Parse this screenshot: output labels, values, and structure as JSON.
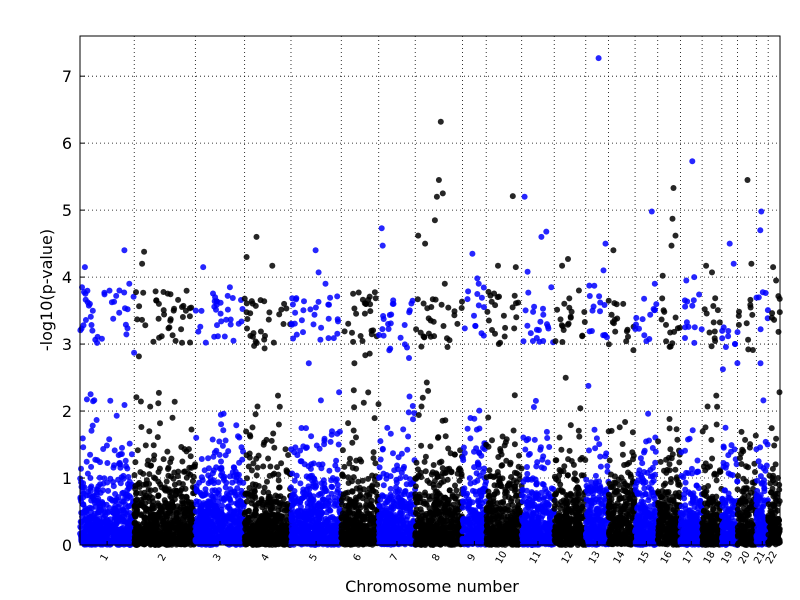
{
  "chart_data": {
    "type": "scatter",
    "title": "",
    "xlabel": "Chromosome number",
    "ylabel": "-log10(p-value)",
    "ylim": [
      0,
      7.6
    ],
    "yticks": [
      0,
      1,
      2,
      3,
      4,
      5,
      6,
      7
    ],
    "grid": true,
    "colors": {
      "odd": "#0000ff",
      "even": "#000000"
    },
    "chromosomes": [
      {
        "label": "1",
        "start": 0,
        "end": 55,
        "color": "#0000ff",
        "typical_max": 3.0,
        "peaks": [
          [
            2,
            3.85
          ],
          [
            5,
            4.15
          ],
          [
            10,
            3.6
          ],
          [
            40,
            3.8
          ],
          [
            45,
            4.4
          ],
          [
            50,
            3.9
          ]
        ]
      },
      {
        "label": "2",
        "start": 55,
        "end": 117,
        "color": "#000000",
        "typical_max": 3.0,
        "peaks": [
          [
            8,
            4.2
          ],
          [
            10,
            4.38
          ],
          [
            25,
            3.6
          ],
          [
            40,
            3.5
          ]
        ]
      },
      {
        "label": "3",
        "start": 117,
        "end": 167,
        "color": "#0000ff",
        "typical_max": 3.0,
        "peaks": [
          [
            8,
            4.15
          ],
          [
            20,
            3.7
          ],
          [
            35,
            3.85
          ]
        ]
      },
      {
        "label": "4",
        "start": 167,
        "end": 214,
        "color": "#000000",
        "typical_max": 2.9,
        "peaks": [
          [
            2,
            4.3
          ],
          [
            12,
            4.6
          ],
          [
            28,
            4.17
          ],
          [
            40,
            3.6
          ]
        ]
      },
      {
        "label": "5",
        "start": 214,
        "end": 265,
        "color": "#0000ff",
        "typical_max": 3.0,
        "peaks": [
          [
            25,
            4.4
          ],
          [
            28,
            4.07
          ],
          [
            35,
            3.9
          ]
        ]
      },
      {
        "label": "6",
        "start": 265,
        "end": 303,
        "color": "#000000",
        "typical_max": 3.0,
        "peaks": [
          [
            12,
            3.75
          ],
          [
            25,
            3.6
          ]
        ]
      },
      {
        "label": "7",
        "start": 303,
        "end": 340,
        "color": "#0000ff",
        "typical_max": 2.9,
        "peaks": [
          [
            3,
            4.73
          ],
          [
            4,
            4.47
          ],
          [
            15,
            3.6
          ]
        ]
      },
      {
        "label": "8",
        "start": 340,
        "end": 388,
        "color": "#000000",
        "typical_max": 2.9,
        "peaks": [
          [
            3,
            4.62
          ],
          [
            10,
            4.5
          ],
          [
            20,
            4.85
          ],
          [
            22,
            5.2
          ],
          [
            24,
            5.45
          ],
          [
            26,
            6.32
          ],
          [
            28,
            5.25
          ],
          [
            30,
            3.9
          ]
        ]
      },
      {
        "label": "9",
        "start": 388,
        "end": 412,
        "color": "#0000ff",
        "typical_max": 3.1,
        "peaks": [
          [
            10,
            4.35
          ],
          [
            15,
            3.98
          ]
        ]
      },
      {
        "label": "10",
        "start": 412,
        "end": 448,
        "color": "#000000",
        "typical_max": 3.0,
        "peaks": [
          [
            12,
            4.17
          ],
          [
            27,
            5.21
          ],
          [
            30,
            4.15
          ]
        ]
      },
      {
        "label": "11",
        "start": 448,
        "end": 481,
        "color": "#0000ff",
        "typical_max": 3.0,
        "peaks": [
          [
            3,
            5.2
          ],
          [
            6,
            4.08
          ],
          [
            20,
            4.6
          ],
          [
            25,
            4.68
          ],
          [
            30,
            3.85
          ]
        ]
      },
      {
        "label": "12",
        "start": 481,
        "end": 513,
        "color": "#000000",
        "typical_max": 3.0,
        "peaks": [
          [
            8,
            4.17
          ],
          [
            14,
            4.27
          ],
          [
            25,
            3.8
          ]
        ]
      },
      {
        "label": "13",
        "start": 513,
        "end": 536,
        "color": "#0000ff",
        "typical_max": 3.1,
        "peaks": [
          [
            13,
            7.27
          ],
          [
            18,
            4.1
          ],
          [
            20,
            4.5
          ]
        ]
      },
      {
        "label": "14",
        "start": 536,
        "end": 563,
        "color": "#000000",
        "typical_max": 2.9,
        "peaks": [
          [
            5,
            4.4
          ],
          [
            15,
            3.6
          ]
        ]
      },
      {
        "label": "15",
        "start": 563,
        "end": 586,
        "color": "#0000ff",
        "typical_max": 3.0,
        "peaks": [
          [
            17,
            4.98
          ],
          [
            20,
            3.9
          ]
        ]
      },
      {
        "label": "16",
        "start": 586,
        "end": 609,
        "color": "#000000",
        "typical_max": 2.9,
        "peaks": [
          [
            5,
            4.02
          ],
          [
            14,
            4.47
          ],
          [
            15,
            4.87
          ],
          [
            16,
            5.33
          ],
          [
            18,
            4.62
          ]
        ]
      },
      {
        "label": "17",
        "start": 609,
        "end": 631,
        "color": "#0000ff",
        "typical_max": 3.0,
        "peaks": [
          [
            12,
            5.73
          ],
          [
            6,
            3.95
          ],
          [
            14,
            4.0
          ]
        ]
      },
      {
        "label": "18",
        "start": 631,
        "end": 651,
        "color": "#000000",
        "typical_max": 2.9,
        "peaks": [
          [
            4,
            4.17
          ],
          [
            10,
            4.07
          ]
        ]
      },
      {
        "label": "19",
        "start": 651,
        "end": 667,
        "color": "#0000ff",
        "typical_max": 2.6,
        "peaks": [
          [
            8,
            4.5
          ],
          [
            12,
            4.2
          ]
        ]
      },
      {
        "label": "20",
        "start": 667,
        "end": 686,
        "color": "#000000",
        "typical_max": 2.9,
        "peaks": [
          [
            10,
            5.45
          ],
          [
            14,
            4.2
          ]
        ]
      },
      {
        "label": "21",
        "start": 686,
        "end": 698,
        "color": "#0000ff",
        "typical_max": 3.0,
        "peaks": [
          [
            5,
            4.98
          ],
          [
            4,
            4.7
          ]
        ]
      },
      {
        "label": "22",
        "start": 698,
        "end": 710,
        "color": "#000000",
        "typical_max": 3.0,
        "peaks": [
          [
            5,
            4.15
          ],
          [
            8,
            3.95
          ]
        ]
      }
    ]
  }
}
